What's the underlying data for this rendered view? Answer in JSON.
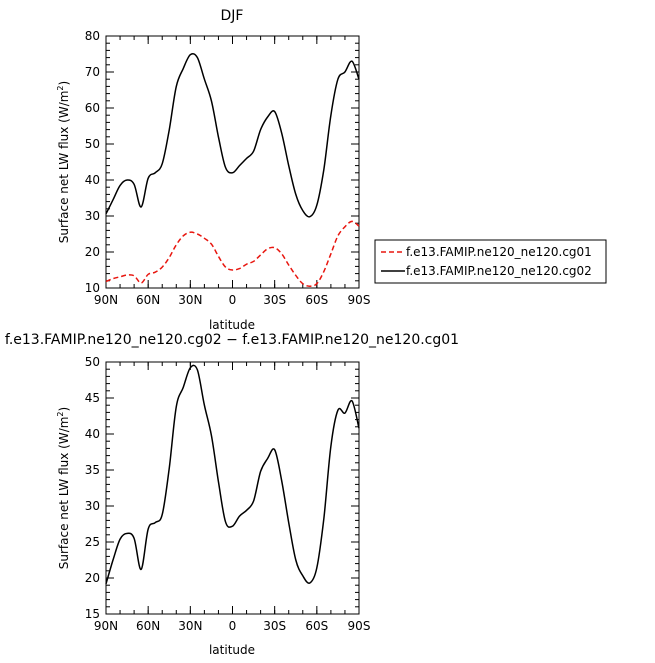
{
  "chart_data": [
    {
      "type": "line",
      "title": "DJF",
      "xlabel": "latitude",
      "ylabel": "Surface net LW flux (W/m²)",
      "ylabel_main": "Surface net LW flux (W/m",
      "ylabel_sup": "2",
      "ylabel_end": ")",
      "xlim": [
        90,
        -90
      ],
      "ylim": [
        10,
        80
      ],
      "xticks": [
        90,
        60,
        30,
        0,
        -30,
        -60,
        -90
      ],
      "xtick_labels": [
        "90N",
        "60N",
        "30N",
        "0",
        "30S",
        "60S",
        "90S"
      ],
      "yticks": [
        10,
        20,
        30,
        40,
        50,
        60,
        70,
        80
      ],
      "ytick_labels": [
        "10",
        "20",
        "30",
        "40",
        "50",
        "60",
        "70",
        "80"
      ],
      "legend_position": "right",
      "x": [
        90,
        85,
        80,
        75,
        70,
        65,
        60,
        55,
        50,
        45,
        40,
        35,
        30,
        25,
        20,
        15,
        10,
        5,
        0,
        -5,
        -10,
        -15,
        -20,
        -25,
        -30,
        -35,
        -40,
        -45,
        -50,
        -55,
        -60,
        -65,
        -70,
        -75,
        -80,
        -85,
        -90
      ],
      "series": [
        {
          "name": "f.e13.FAMIP.ne120_ne120.cg01",
          "color": "#e8160f",
          "dash": "dashed",
          "values": [
            11.8,
            12.6,
            13.1,
            13.6,
            13.4,
            11.4,
            13.8,
            14.4,
            15.8,
            18.5,
            22.0,
            24.5,
            25.5,
            25.0,
            23.8,
            22.2,
            18.8,
            15.8,
            15.0,
            15.4,
            16.6,
            17.4,
            19.2,
            20.9,
            21.2,
            19.5,
            16.4,
            13.5,
            11.2,
            10.5,
            11.2,
            14.6,
            19.5,
            24.5,
            27.0,
            28.5,
            27.2
          ]
        },
        {
          "name": "f.e13.FAMIP.ne120_ne120.cg02",
          "color": "#000000",
          "dash": "solid",
          "values": [
            30.6,
            34.5,
            38.5,
            40.0,
            38.8,
            32.5,
            40.5,
            42.0,
            44.5,
            54.0,
            66.0,
            71.0,
            74.8,
            74.0,
            68.0,
            62.0,
            52.0,
            43.5,
            42.0,
            44.0,
            46.0,
            48.0,
            54.0,
            57.5,
            59.0,
            53.0,
            44.0,
            36.0,
            31.5,
            29.8,
            33.0,
            43.0,
            58.0,
            68.0,
            70.0,
            73.0,
            68.0
          ]
        }
      ]
    },
    {
      "type": "line",
      "title": "f.e13.FAMIP.ne120_ne120.cg02 − f.e13.FAMIP.ne120_ne120.cg01",
      "xlabel": "latitude",
      "ylabel": "Surface net LW flux (W/m²)",
      "ylabel_main": "Surface net LW flux (W/m",
      "ylabel_sup": "2",
      "ylabel_end": ")",
      "xlim": [
        90,
        -90
      ],
      "ylim": [
        15,
        50
      ],
      "xticks": [
        90,
        60,
        30,
        0,
        -30,
        -60,
        -90
      ],
      "xtick_labels": [
        "90N",
        "60N",
        "30N",
        "0",
        "30S",
        "60S",
        "90S"
      ],
      "yticks": [
        15,
        20,
        25,
        30,
        35,
        40,
        45,
        50
      ],
      "ytick_labels": [
        "15",
        "20",
        "25",
        "30",
        "35",
        "40",
        "45",
        "50"
      ],
      "x": [
        90,
        85,
        80,
        75,
        70,
        65,
        60,
        55,
        50,
        45,
        40,
        35,
        30,
        25,
        20,
        15,
        10,
        5,
        0,
        -5,
        -10,
        -15,
        -20,
        -25,
        -30,
        -35,
        -40,
        -45,
        -50,
        -55,
        -60,
        -65,
        -70,
        -75,
        -80,
        -85,
        -90
      ],
      "series": [
        {
          "color": "#000000",
          "dash": "solid",
          "values": [
            19.2,
            22.5,
            25.4,
            26.2,
            25.5,
            21.2,
            26.8,
            27.7,
            28.8,
            35.3,
            43.8,
            46.5,
            49.2,
            48.9,
            44.0,
            39.8,
            33.4,
            27.8,
            27.2,
            28.6,
            29.4,
            30.7,
            34.8,
            36.6,
            37.8,
            33.5,
            27.7,
            22.5,
            20.3,
            19.3,
            21.4,
            28.3,
            38.3,
            43.3,
            42.9,
            44.6,
            40.8
          ]
        }
      ]
    }
  ]
}
